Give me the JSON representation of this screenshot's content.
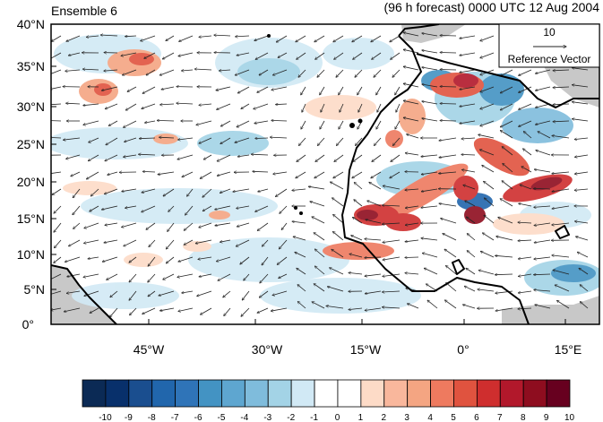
{
  "title_left": "Ensemble 6",
  "title_right": "(96 h forecast) 0000 UTC 12 Aug 2004",
  "ref_vector": {
    "value": "10",
    "label": "Reference Vector"
  },
  "lat_ticks": [
    "40°N",
    "35°N",
    "30°N",
    "25°N",
    "20°N",
    "15°N",
    "10°N",
    "5°N",
    "0°"
  ],
  "lon_ticks": [
    "45°W",
    "30°W",
    "15°W",
    "0°",
    "15°E"
  ],
  "colorbar": {
    "labels": [
      "-10",
      "-9",
      "-8",
      "-7",
      "-6",
      "-5",
      "-4",
      "-3",
      "-2",
      "-1",
      "0",
      "1",
      "2",
      "3",
      "4",
      "5",
      "6",
      "7",
      "8",
      "9",
      "10"
    ],
    "colors": [
      "#0b2a55",
      "#08306b",
      "#1a4e8f",
      "#2166ac",
      "#2f74b8",
      "#4393c3",
      "#5ea6d0",
      "#7fbcdc",
      "#a3d3e6",
      "#d1e9f5",
      "#ffffff",
      "#ffffff",
      "#fddbc7",
      "#f9b79c",
      "#f4a582",
      "#ee7a5f",
      "#e0533f",
      "#cf2e2e",
      "#b2182b",
      "#8e0d1f",
      "#67001f"
    ]
  },
  "map": {
    "lon_range": [
      -62,
      22
    ],
    "lat_range": [
      0,
      40
    ],
    "land_color": "#c8c8c8",
    "coast_color": "#000000"
  }
}
